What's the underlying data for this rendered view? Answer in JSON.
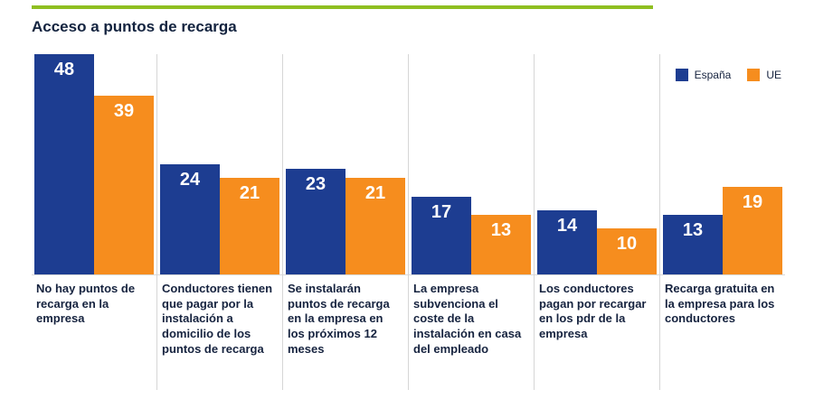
{
  "title": "Acceso a puntos de recarga",
  "colors": {
    "accent_line": "#8fbf21",
    "espana": "#1d3d91",
    "ue": "#f68d1e",
    "text": "#16233f",
    "divider": "#d6d6d6"
  },
  "chart_data": {
    "type": "bar",
    "title": "Acceso a puntos de recarga",
    "categories": [
      "No hay puntos de recarga en la empresa",
      "Conductores tienen que pagar por la instalación a domicilio de los puntos de recarga",
      "Se instalarán puntos de recarga en la empresa en los próximos 12 meses",
      "La empresa subvenciona el coste de la instalación en casa del empleado",
      "Los conductores pagan por recargar en los pdr de la empresa",
      "Recarga gratuita en la empresa para los conductores"
    ],
    "series": [
      {
        "name": "España",
        "color": "#1d3d91",
        "values": [
          48,
          24,
          23,
          17,
          14,
          13
        ]
      },
      {
        "name": "UE",
        "color": "#f68d1e",
        "values": [
          39,
          21,
          21,
          13,
          10,
          19
        ]
      }
    ],
    "xlabel": "",
    "ylabel": "",
    "ylim": [
      0,
      48
    ],
    "grid": false,
    "value_labels": true,
    "legend_position": "top-right"
  }
}
